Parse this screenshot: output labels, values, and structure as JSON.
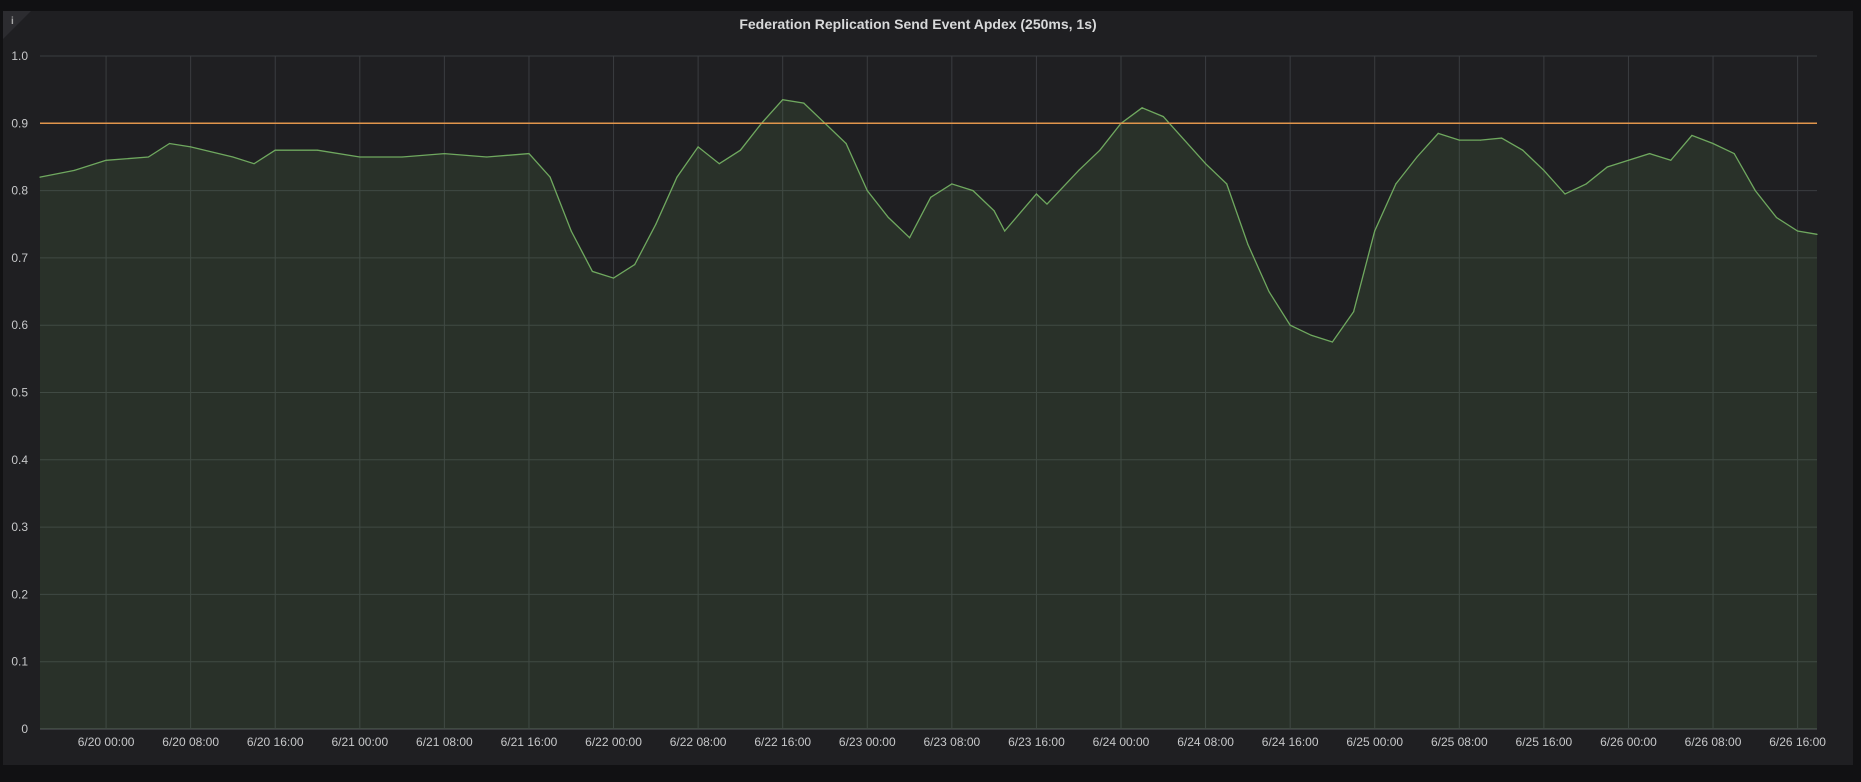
{
  "chart_data": {
    "type": "area",
    "title": "Federation Replication Send Event Apdex (250ms, 1s)",
    "xlabel": "",
    "ylabel": "",
    "ylim": [
      0,
      1.0
    ],
    "xlim": [
      "6/19 17:45",
      "6/26 17:50"
    ],
    "y_ticks": [
      "0",
      "0.1",
      "0.2",
      "0.3",
      "0.4",
      "0.5",
      "0.6",
      "0.7",
      "0.8",
      "0.9",
      "1.0"
    ],
    "x_ticks": [
      "6/20 00:00",
      "6/20 08:00",
      "6/20 16:00",
      "6/21 00:00",
      "6/21 08:00",
      "6/21 16:00",
      "6/22 00:00",
      "6/22 08:00",
      "6/22 16:00",
      "6/23 00:00",
      "6/23 08:00",
      "6/23 16:00",
      "6/24 00:00",
      "6/24 08:00",
      "6/24 16:00",
      "6/25 00:00",
      "6/25 08:00",
      "6/25 16:00",
      "6/26 00:00",
      "6/26 08:00",
      "6/26 16:00"
    ],
    "grid": true,
    "legend": "none",
    "threshold": {
      "value": 0.9,
      "color": "#e0954c"
    },
    "series": [
      {
        "color": "#6fa85f",
        "points": [
          [
            "6/19 17:45",
            0.82
          ],
          [
            "6/19 21:00",
            0.83
          ],
          [
            "6/20 00:00",
            0.845
          ],
          [
            "6/20 04:00",
            0.85
          ],
          [
            "6/20 06:00",
            0.87
          ],
          [
            "6/20 08:00",
            0.865
          ],
          [
            "6/20 12:00",
            0.85
          ],
          [
            "6/20 14:00",
            0.84
          ],
          [
            "6/20 16:00",
            0.86
          ],
          [
            "6/20 20:00",
            0.86
          ],
          [
            "6/21 00:00",
            0.85
          ],
          [
            "6/21 04:00",
            0.85
          ],
          [
            "6/21 08:00",
            0.855
          ],
          [
            "6/21 12:00",
            0.85
          ],
          [
            "6/21 16:00",
            0.855
          ],
          [
            "6/21 18:00",
            0.82
          ],
          [
            "6/21 20:00",
            0.74
          ],
          [
            "6/21 22:00",
            0.68
          ],
          [
            "6/22 00:00",
            0.67
          ],
          [
            "6/22 02:00",
            0.69
          ],
          [
            "6/22 04:00",
            0.75
          ],
          [
            "6/22 06:00",
            0.82
          ],
          [
            "6/22 08:00",
            0.865
          ],
          [
            "6/22 10:00",
            0.84
          ],
          [
            "6/22 12:00",
            0.86
          ],
          [
            "6/22 14:00",
            0.9
          ],
          [
            "6/22 16:00",
            0.935
          ],
          [
            "6/22 18:00",
            0.93
          ],
          [
            "6/22 20:00",
            0.9
          ],
          [
            "6/22 22:00",
            0.87
          ],
          [
            "6/23 00:00",
            0.8
          ],
          [
            "6/23 02:00",
            0.76
          ],
          [
            "6/23 04:00",
            0.73
          ],
          [
            "6/23 06:00",
            0.79
          ],
          [
            "6/23 08:00",
            0.81
          ],
          [
            "6/23 10:00",
            0.8
          ],
          [
            "6/23 12:00",
            0.77
          ],
          [
            "6/23 13:00",
            0.74
          ],
          [
            "6/23 16:00",
            0.795
          ],
          [
            "6/23 17:00",
            0.78
          ],
          [
            "6/23 20:00",
            0.83
          ],
          [
            "6/23 22:00",
            0.86
          ],
          [
            "6/24 00:00",
            0.9
          ],
          [
            "6/24 02:00",
            0.923
          ],
          [
            "6/24 04:00",
            0.91
          ],
          [
            "6/24 06:00",
            0.875
          ],
          [
            "6/24 08:00",
            0.84
          ],
          [
            "6/24 10:00",
            0.81
          ],
          [
            "6/24 12:00",
            0.72
          ],
          [
            "6/24 14:00",
            0.65
          ],
          [
            "6/24 16:00",
            0.6
          ],
          [
            "6/24 18:00",
            0.585
          ],
          [
            "6/24 20:00",
            0.575
          ],
          [
            "6/24 22:00",
            0.62
          ],
          [
            "6/25 00:00",
            0.74
          ],
          [
            "6/25 02:00",
            0.81
          ],
          [
            "6/25 04:00",
            0.85
          ],
          [
            "6/25 06:00",
            0.885
          ],
          [
            "6/25 08:00",
            0.875
          ],
          [
            "6/25 10:00",
            0.875
          ],
          [
            "6/25 12:00",
            0.878
          ],
          [
            "6/25 14:00",
            0.86
          ],
          [
            "6/25 16:00",
            0.83
          ],
          [
            "6/25 18:00",
            0.795
          ],
          [
            "6/25 20:00",
            0.81
          ],
          [
            "6/25 22:00",
            0.835
          ],
          [
            "6/26 00:00",
            0.845
          ],
          [
            "6/26 02:00",
            0.855
          ],
          [
            "6/26 04:00",
            0.845
          ],
          [
            "6/26 06:00",
            0.882
          ],
          [
            "6/26 08:00",
            0.87
          ],
          [
            "6/26 10:00",
            0.855
          ],
          [
            "6/26 12:00",
            0.8
          ],
          [
            "6/26 14:00",
            0.76
          ],
          [
            "6/26 16:00",
            0.74
          ],
          [
            "6/26 17:50",
            0.735
          ]
        ]
      }
    ]
  }
}
